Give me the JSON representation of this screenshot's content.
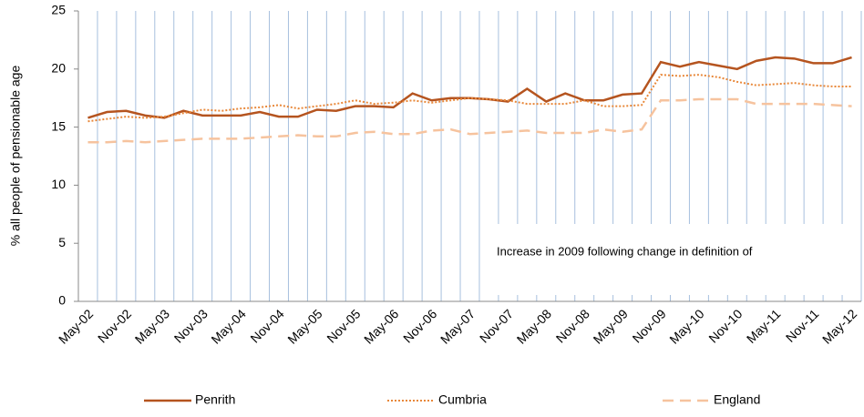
{
  "chart_data": {
    "type": "line",
    "y_label": "% all people of pensionable age",
    "annotation": "Increase in 2009 following change in definition of",
    "categories": [
      "May-02",
      null,
      "Nov-02",
      null,
      "May-03",
      null,
      "Nov-03",
      null,
      "May-04",
      null,
      "Nov-04",
      null,
      "May-05",
      null,
      "Nov-05",
      null,
      "May-06",
      null,
      "Nov-06",
      null,
      "May-07",
      null,
      "Nov-07",
      null,
      "May-08",
      null,
      "Nov-08",
      null,
      "May-09",
      null,
      "Nov-09",
      null,
      "May-10",
      null,
      "Nov-10",
      null,
      "May-11",
      null,
      "Nov-11",
      null,
      "May-12"
    ],
    "series": [
      {
        "name": "Penrith",
        "color": "#b5541f",
        "dash": "solid",
        "values": [
          15.8,
          16.3,
          16.4,
          16.0,
          15.8,
          16.4,
          16.0,
          16.0,
          16.0,
          16.3,
          15.9,
          15.9,
          16.5,
          16.4,
          16.8,
          16.8,
          16.7,
          17.9,
          17.3,
          17.5,
          17.5,
          17.4,
          17.2,
          18.3,
          17.2,
          17.9,
          17.3,
          17.3,
          17.8,
          17.9,
          20.6,
          20.2,
          20.6,
          20.3,
          20.0,
          20.7,
          21.0,
          20.9,
          20.5,
          20.5,
          21.0
        ]
      },
      {
        "name": "Cumbria",
        "color": "#e8883a",
        "dash": "dotted",
        "values": [
          15.5,
          15.7,
          15.9,
          15.8,
          15.9,
          16.2,
          16.5,
          16.4,
          16.6,
          16.7,
          16.9,
          16.6,
          16.8,
          17.0,
          17.3,
          17.0,
          17.1,
          17.3,
          17.1,
          17.3,
          17.5,
          17.4,
          17.3,
          17.0,
          17.0,
          17.0,
          17.3,
          16.8,
          16.8,
          16.9,
          19.5,
          19.4,
          19.5,
          19.3,
          18.9,
          18.6,
          18.7,
          18.8,
          18.6,
          18.5,
          18.5
        ]
      },
      {
        "name": "England",
        "color": "#f6c39e",
        "dash": "dashed",
        "values": [
          13.7,
          13.7,
          13.8,
          13.7,
          13.8,
          13.9,
          14.0,
          14.0,
          14.0,
          14.1,
          14.2,
          14.3,
          14.2,
          14.2,
          14.5,
          14.6,
          14.4,
          14.4,
          14.7,
          14.8,
          14.4,
          14.5,
          14.6,
          14.7,
          14.5,
          14.5,
          14.5,
          14.8,
          14.6,
          14.8,
          17.3,
          17.3,
          17.4,
          17.4,
          17.4,
          17.0,
          17.0,
          17.0,
          17.0,
          16.9,
          16.8
        ]
      }
    ],
    "ylim": [
      0,
      25
    ],
    "yticks": [
      0,
      5,
      10,
      15,
      20,
      25
    ],
    "legend": "bottom",
    "grid_color": "#a7c0de"
  }
}
